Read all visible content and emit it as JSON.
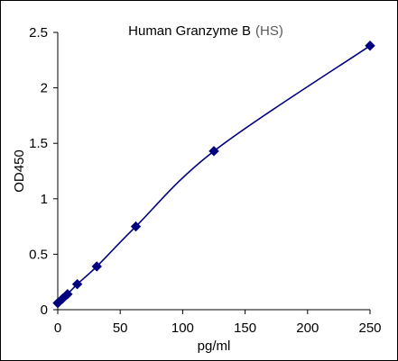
{
  "chart_data": {
    "type": "line",
    "title_main": "Human Granzyme B",
    "title_suffix": "(HS)",
    "xlabel": "pg/ml",
    "ylabel": "OD450",
    "xlim": [
      0,
      250
    ],
    "ylim": [
      0,
      2.5
    ],
    "x_ticks": [
      "0",
      "50",
      "100",
      "150",
      "200",
      "250"
    ],
    "y_ticks": [
      "0",
      "0.5",
      "1",
      "1.5",
      "2",
      "2.5"
    ],
    "series": [
      {
        "x": [
          0,
          3.9,
          7.8,
          15.6,
          31.25,
          62.5,
          125,
          250
        ],
        "y": [
          0.06,
          0.1,
          0.14,
          0.23,
          0.39,
          0.75,
          1.43,
          2.38
        ]
      }
    ],
    "colors": {
      "series": "#00007f",
      "title_suffix": "#5a5a5a",
      "axis": "#000000"
    },
    "grid": false,
    "legend": "none"
  }
}
